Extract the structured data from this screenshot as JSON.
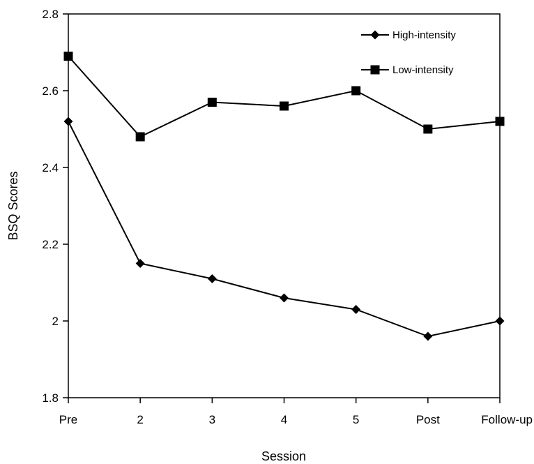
{
  "chart_data": {
    "type": "line",
    "title": "",
    "xlabel": "Session",
    "ylabel": "BSQ Scores",
    "categories": [
      "Pre",
      "2",
      "3",
      "4",
      "5",
      "Post",
      "Follow-up"
    ],
    "ylim": [
      1.8,
      2.8
    ],
    "yticks": [
      "1.8",
      "2",
      "2.2",
      "2.4",
      "2.6",
      "2.8"
    ],
    "grid": false,
    "legend_position": "top-right",
    "series": [
      {
        "name": "High-intensity",
        "marker": "diamond",
        "color": "#000000",
        "values": [
          2.52,
          2.15,
          2.11,
          2.06,
          2.03,
          1.96,
          2.0
        ]
      },
      {
        "name": "Low-intensity",
        "marker": "square",
        "color": "#000000",
        "values": [
          2.69,
          2.48,
          2.57,
          2.56,
          2.6,
          2.5,
          2.52
        ]
      }
    ]
  }
}
